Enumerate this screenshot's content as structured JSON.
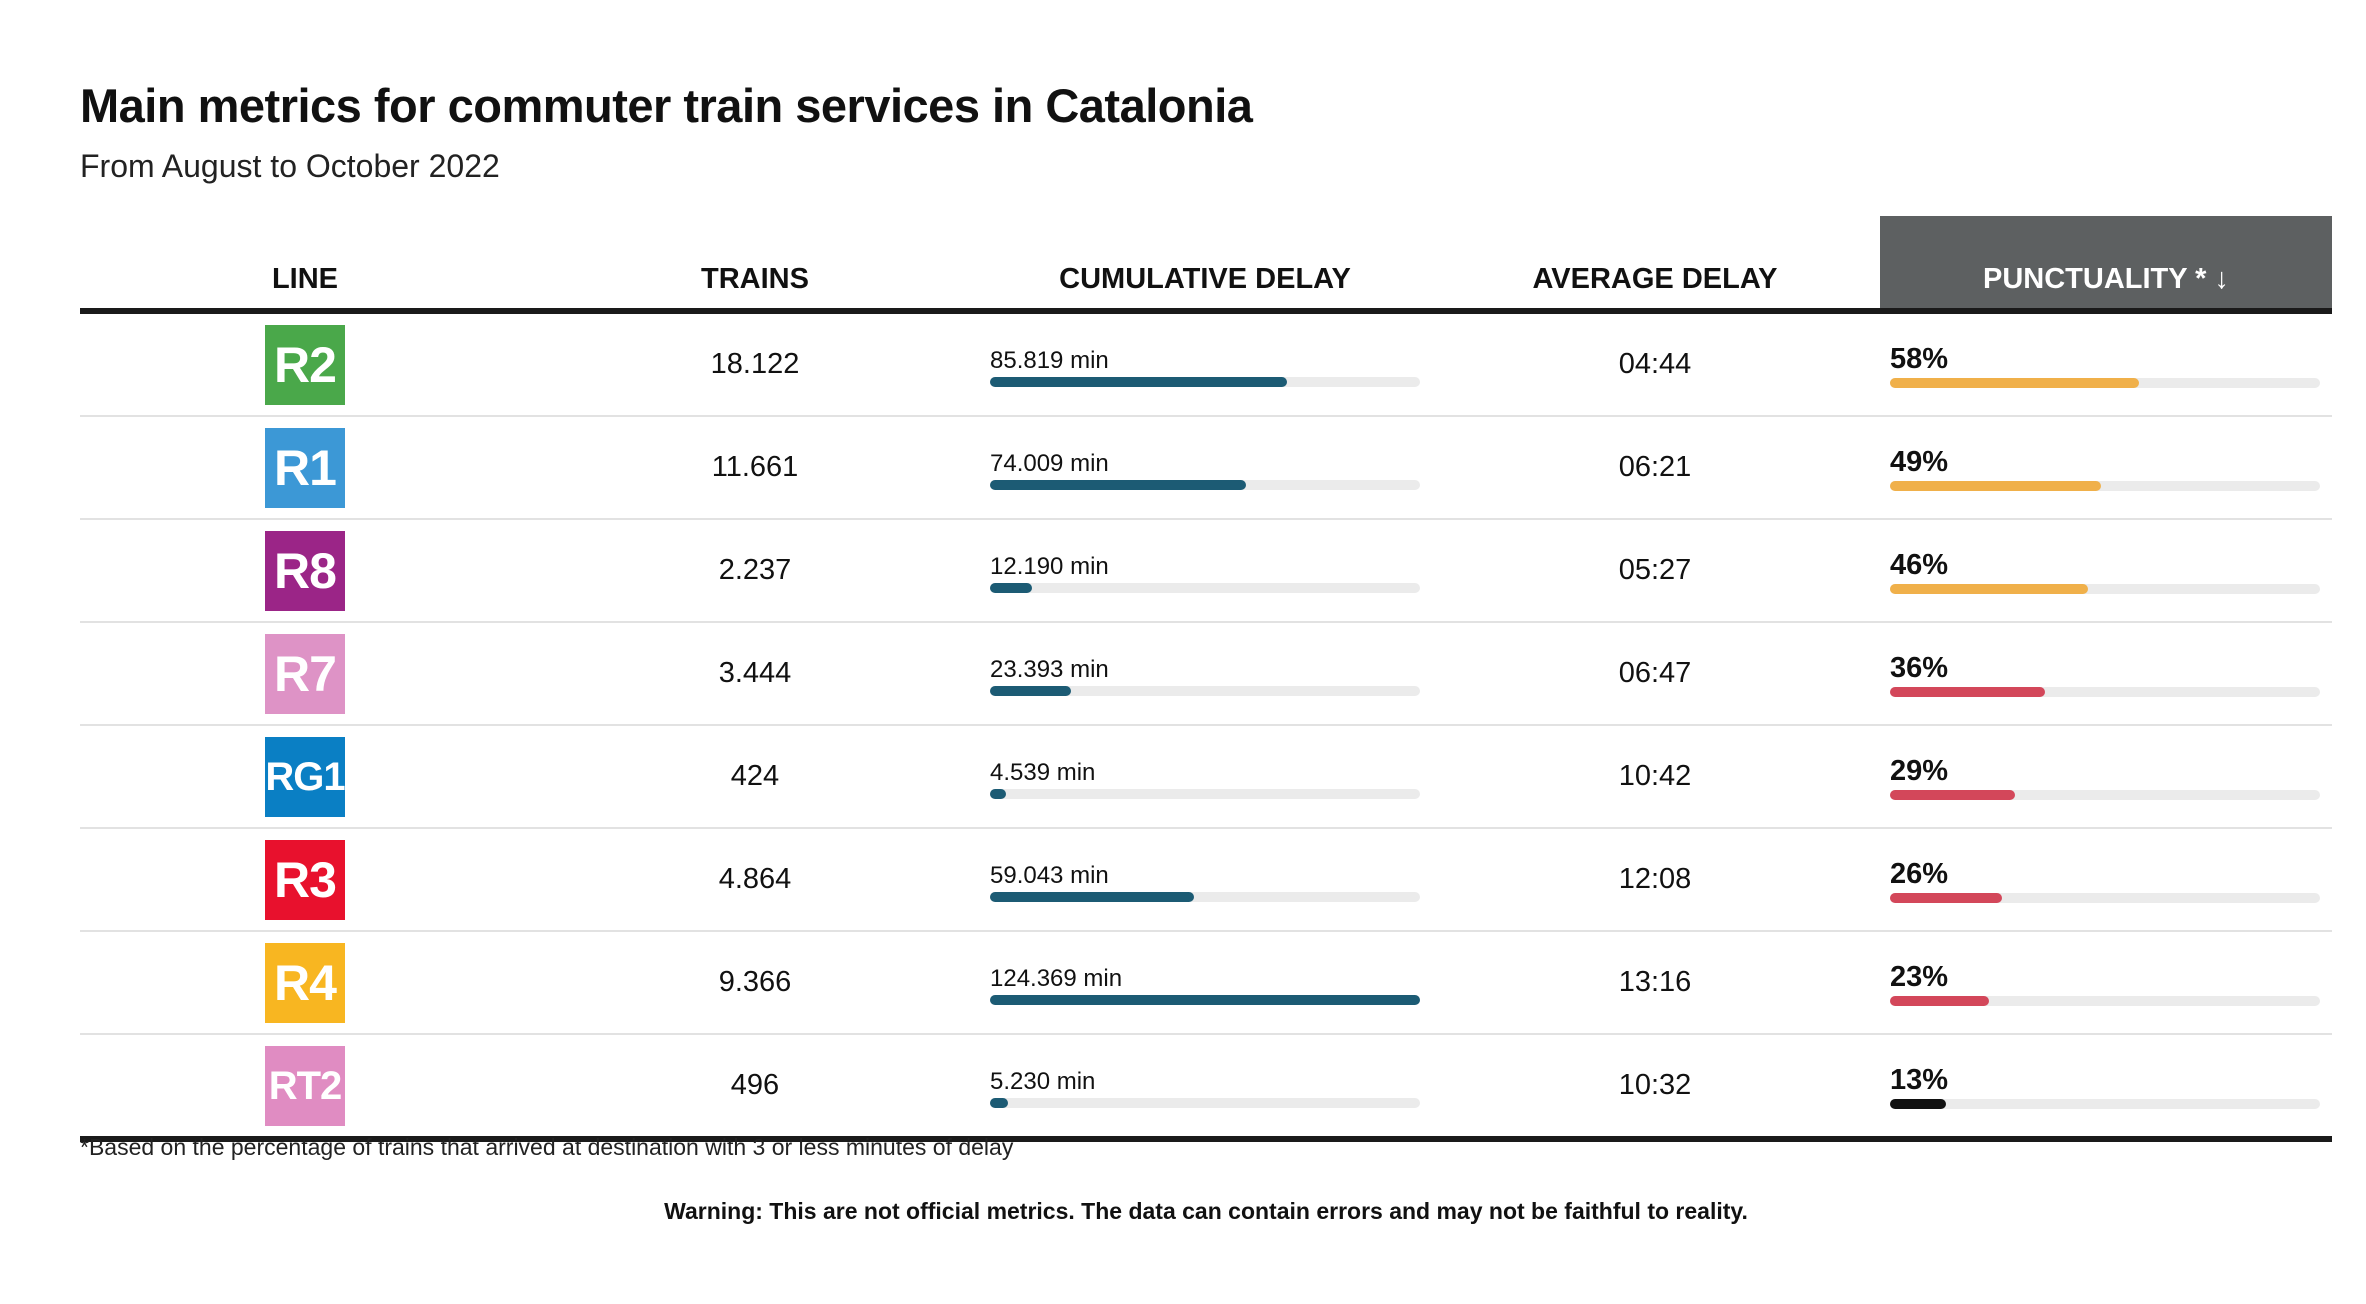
{
  "title": "Main metrics for commuter train services in Catalonia",
  "subtitle": "From August to October 2022",
  "columns": {
    "line": "LINE",
    "trains": "TRAINS",
    "cumulative_delay": "CUMULATIVE DELAY",
    "average_delay": "AVERAGE DELAY",
    "punctuality": "PUNCTUALITY * ↓"
  },
  "max_cumulative_delay": 124369,
  "rows": [
    {
      "line": "R2",
      "line_color": "#4aa84a",
      "trains": "18.122",
      "delay_label": "85.819 min",
      "delay_value": 85819,
      "avg_delay": "04:44",
      "punctuality_label": "58%",
      "punctuality": 58,
      "punct_color": "#f0b04a"
    },
    {
      "line": "R1",
      "line_color": "#3c98d6",
      "trains": "11.661",
      "delay_label": "74.009 min",
      "delay_value": 74009,
      "avg_delay": "06:21",
      "punctuality_label": "49%",
      "punctuality": 49,
      "punct_color": "#f0b04a"
    },
    {
      "line": "R8",
      "line_color": "#9b2587",
      "trains": "2.237",
      "delay_label": "12.190 min",
      "delay_value": 12190,
      "avg_delay": "05:27",
      "punctuality_label": "46%",
      "punctuality": 46,
      "punct_color": "#f0b04a"
    },
    {
      "line": "R7",
      "line_color": "#de93c6",
      "trains": "3.444",
      "delay_label": "23.393 min",
      "delay_value": 23393,
      "avg_delay": "06:47",
      "punctuality_label": "36%",
      "punctuality": 36,
      "punct_color": "#d3475a"
    },
    {
      "line": "RG1",
      "line_color": "#0a7fc4",
      "trains": "424",
      "delay_label": "4.539 min",
      "delay_value": 4539,
      "avg_delay": "10:42",
      "punctuality_label": "29%",
      "punctuality": 29,
      "punct_color": "#d3475a"
    },
    {
      "line": "R3",
      "line_color": "#e8112d",
      "trains": "4.864",
      "delay_label": "59.043 min",
      "delay_value": 59043,
      "avg_delay": "12:08",
      "punctuality_label": "26%",
      "punctuality": 26,
      "punct_color": "#d3475a"
    },
    {
      "line": "R4",
      "line_color": "#f8b621",
      "trains": "9.366",
      "delay_label": "124.369 min",
      "delay_value": 124369,
      "avg_delay": "13:16",
      "punctuality_label": "23%",
      "punctuality": 23,
      "punct_color": "#d3475a"
    },
    {
      "line": "RT2",
      "line_color": "#e08cc2",
      "trains": "496",
      "delay_label": "5.230 min",
      "delay_value": 5230,
      "avg_delay": "10:32",
      "punctuality_label": "13%",
      "punctuality": 13,
      "punct_color": "#111111"
    }
  ],
  "footnote": "*Based on the percentage of trains that arrived at destination with 3 or less minutes of delay",
  "warning": "Warning: This are not official metrics. The data can contain errors and may not be faithful to reality."
}
